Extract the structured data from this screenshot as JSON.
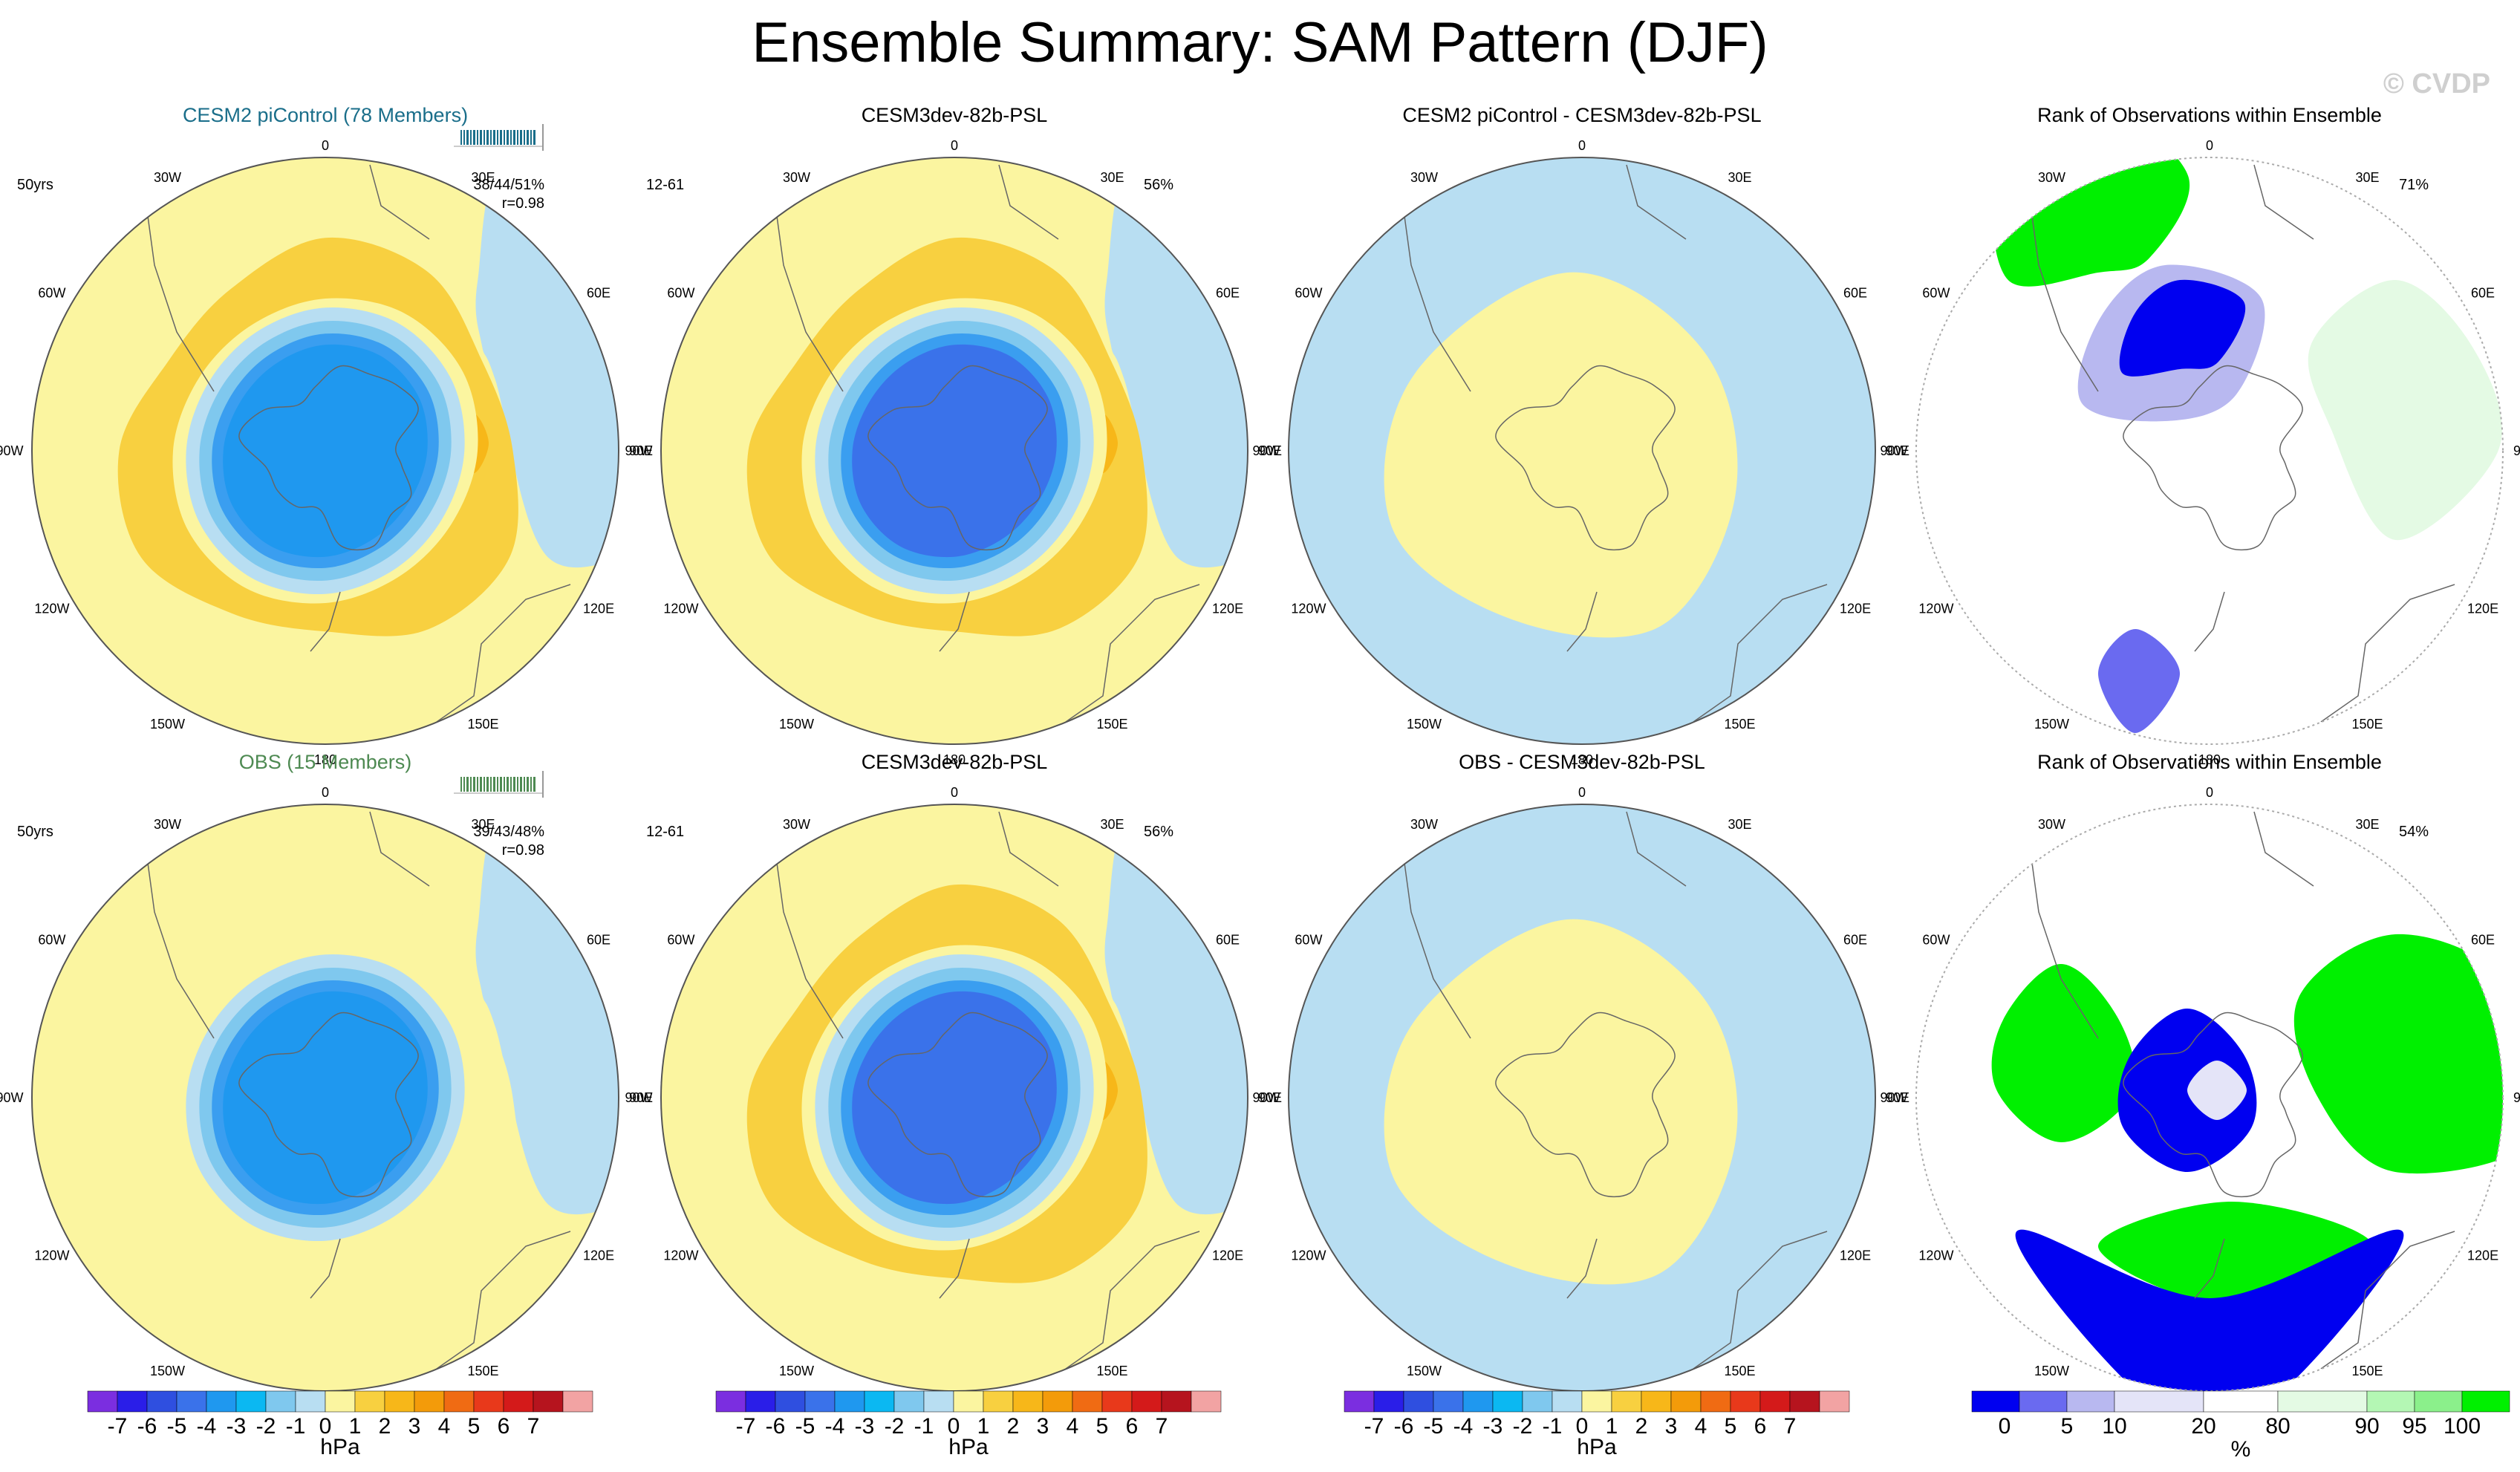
{
  "page": {
    "title": "Ensemble Summary: SAM Pattern (DJF)",
    "watermark": "© CVDP"
  },
  "palette": {
    "hpa_colors": [
      "#7b2ee0",
      "#2a1ee8",
      "#2f4fe0",
      "#3a72ea",
      "#1f98ef",
      "#0bb8f2",
      "#7fc8ee",
      "#b8def2",
      "#fbf5a0",
      "#f8d040",
      "#f7b719",
      "#f39b0a",
      "#f06b13",
      "#e8391b",
      "#d41a1a",
      "#b6141e",
      "#f2a3a3"
    ],
    "rank_colors": [
      "#0000f0",
      "#6a6af0",
      "#b8b8f0",
      "#e4e4f8",
      "#ffffff",
      "#e4fae4",
      "#b4f7b4",
      "#8bf08b",
      "#00f000"
    ]
  },
  "colorbars": {
    "hpa": {
      "labels": [
        "-7",
        "-6",
        "-5",
        "-4",
        "-3",
        "-2",
        "-1",
        "0",
        "1",
        "2",
        "3",
        "4",
        "5",
        "6",
        "7"
      ],
      "unit": "hPa"
    },
    "rank": {
      "labels": [
        "0",
        "5",
        "10",
        "20",
        "80",
        "90",
        "95",
        "100"
      ],
      "unit": "%"
    }
  },
  "map_labels": {
    "top": "0",
    "bottom": "180",
    "left": [
      "30W",
      "60W",
      "90W",
      "120W",
      "150W"
    ],
    "right": [
      "30E",
      "60E",
      "90E",
      "120E",
      "150E"
    ]
  },
  "panels": [
    {
      "title": "CESM2 piControl (78 Members)",
      "title_color": "#1a6e8a",
      "left_note": "50yrs",
      "right_note": "38/44/51%",
      "right_note2": "r=0.98",
      "has_bar": true,
      "bar_color": "#1a6e8a"
    },
    {
      "title": "CESM3dev-82b-PSL",
      "title_color": "#000000",
      "left_note": "12-61",
      "right_note": "56%",
      "right_note2": "",
      "has_bar": false
    },
    {
      "title": "CESM2 piControl - CESM3dev-82b-PSL",
      "title_color": "#000000",
      "left_note": "",
      "right_note": "",
      "right_note2": "",
      "has_bar": false
    },
    {
      "title": "Rank of Observations within Ensemble",
      "title_color": "#000000",
      "left_note": "",
      "right_note": "71%",
      "right_note2": "",
      "has_bar": false
    },
    {
      "title": "OBS (15 Members)",
      "title_color": "#4e8a52",
      "left_note": "50yrs",
      "right_note": "39/43/48%",
      "right_note2": "r=0.98",
      "has_bar": true,
      "bar_color": "#4e8a52"
    },
    {
      "title": "CESM3dev-82b-PSL",
      "title_color": "#000000",
      "left_note": "12-61",
      "right_note": "56%",
      "right_note2": "",
      "has_bar": false
    },
    {
      "title": "OBS - CESM3dev-82b-PSL",
      "title_color": "#000000",
      "left_note": "",
      "right_note": "",
      "right_note2": "",
      "has_bar": false
    },
    {
      "title": "Rank of Observations within Ensemble",
      "title_color": "#000000",
      "left_note": "",
      "right_note": "54%",
      "right_note2": "",
      "has_bar": false
    }
  ],
  "chart_data": [
    {
      "type": "heatmap",
      "title": "CESM2 piControl (78 Members)",
      "projection": "south-polar-stereographic",
      "variable": "PSL",
      "units": "hPa",
      "clim": [
        -7,
        7
      ],
      "center_value": -4,
      "band_value": 2,
      "peak_value": 3,
      "background_value": 0.5
    },
    {
      "type": "heatmap",
      "title": "CESM3dev-82b-PSL",
      "projection": "south-polar-stereographic",
      "variable": "PSL",
      "units": "hPa",
      "clim": [
        -7,
        7
      ],
      "center_value": -5,
      "band_value": 2,
      "peak_value": 3,
      "background_value": 0.5
    },
    {
      "type": "heatmap",
      "title": "CESM2 piControl - CESM3dev-82b-PSL",
      "projection": "south-polar-stereographic",
      "variable": "PSL difference",
      "units": "hPa",
      "clim": [
        -7,
        7
      ],
      "center_value": 0.5,
      "band_value": 1,
      "peak_value": 1,
      "background_value": -0.5
    },
    {
      "type": "heatmap",
      "title": "Rank of Observations within Ensemble",
      "projection": "south-polar-stereographic",
      "variable": "rank",
      "units": "%",
      "clim": [
        0,
        100
      ],
      "summary_percent": 71
    },
    {
      "type": "heatmap",
      "title": "OBS (15 Members)",
      "projection": "south-polar-stereographic",
      "variable": "PSL",
      "units": "hPa",
      "clim": [
        -7,
        7
      ],
      "center_value": -4,
      "band_value": 1,
      "peak_value": 1,
      "background_value": 0.5
    },
    {
      "type": "heatmap",
      "title": "CESM3dev-82b-PSL",
      "projection": "south-polar-stereographic",
      "variable": "PSL",
      "units": "hPa",
      "clim": [
        -7,
        7
      ],
      "center_value": -5,
      "band_value": 2,
      "peak_value": 3,
      "background_value": 0.5
    },
    {
      "type": "heatmap",
      "title": "OBS - CESM3dev-82b-PSL",
      "projection": "south-polar-stereographic",
      "variable": "PSL difference",
      "units": "hPa",
      "clim": [
        -7,
        7
      ],
      "center_value": 0.5,
      "band_value": 0.5,
      "peak_value": 1,
      "background_value": -0.5
    },
    {
      "type": "heatmap",
      "title": "Rank of Observations within Ensemble",
      "projection": "south-polar-stereographic",
      "variable": "rank",
      "units": "%",
      "clim": [
        0,
        100
      ],
      "summary_percent": 54
    }
  ]
}
